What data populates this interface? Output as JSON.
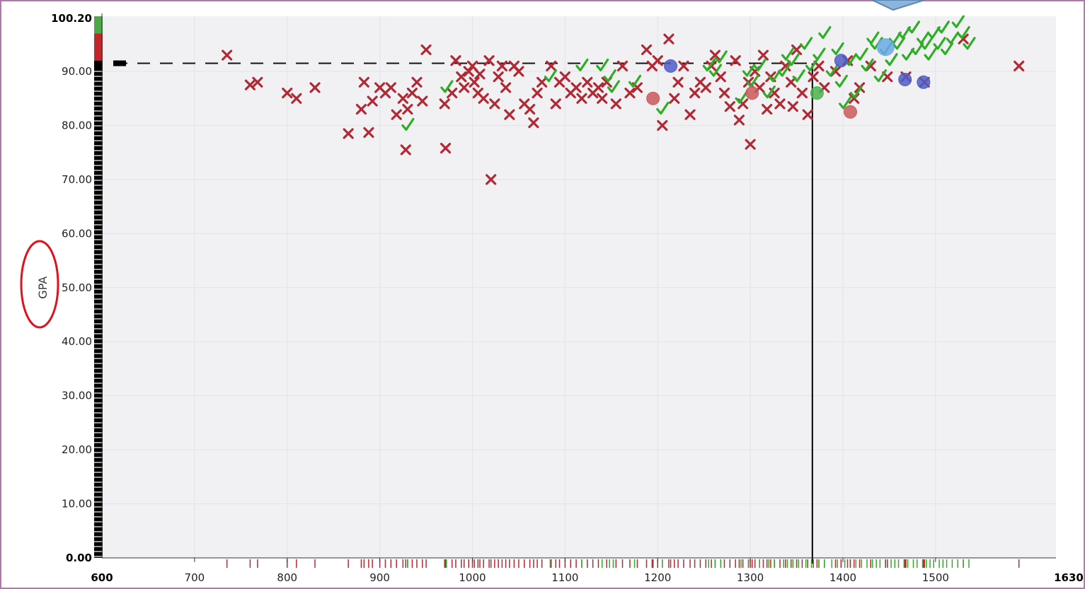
{
  "chart_data": {
    "type": "scatter",
    "title": "",
    "xlabel": "",
    "ylabel": "GPA",
    "xlim": [
      600,
      1630
    ],
    "ylim": [
      0,
      100.2
    ],
    "x_ticks": [
      "700",
      "800",
      "900",
      "1000",
      "1100",
      "1200",
      "1300",
      "1400",
      "1500"
    ],
    "x_edge_labels": [
      "600",
      "1630"
    ],
    "y_ticks": [
      "0.00",
      "10.00",
      "20.00",
      "30.00",
      "40.00",
      "50.00",
      "60.00",
      "70.00",
      "80.00",
      "90.00"
    ],
    "y_max_label": "100.20",
    "grid": true,
    "reference_lines": {
      "horizontal_y": 91.5,
      "vertical_x": 1367
    },
    "marker_colors": {
      "rejected": "#b02a35",
      "accepted": "#2eae25",
      "accepted_circle": "#4bb34a",
      "rejected_circle": "#c95a5a",
      "selected_circle": "#4f5dc5",
      "highlight_circle": "#6aa9e8"
    },
    "series": [
      {
        "marker": "x",
        "points": [
          [
            735,
            93
          ],
          [
            760,
            87.5
          ],
          [
            768,
            88
          ],
          [
            800,
            86
          ],
          [
            810,
            85
          ],
          [
            830,
            87
          ],
          [
            866,
            78.5
          ],
          [
            880,
            83
          ],
          [
            883,
            88
          ],
          [
            888,
            78.7
          ],
          [
            892,
            84.5
          ],
          [
            900,
            87
          ],
          [
            906,
            86
          ],
          [
            912,
            87
          ],
          [
            918,
            82
          ],
          [
            925,
            85
          ],
          [
            928,
            75.5
          ],
          [
            930,
            83
          ],
          [
            935,
            86
          ],
          [
            940,
            88
          ],
          [
            946,
            84.5
          ],
          [
            950,
            94
          ],
          [
            970,
            84
          ],
          [
            971,
            75.8
          ],
          [
            978,
            86
          ],
          [
            982,
            92
          ],
          [
            988,
            89
          ],
          [
            991,
            87
          ],
          [
            996,
            90
          ],
          [
            1000,
            91
          ],
          [
            1002,
            88
          ],
          [
            1006,
            86
          ],
          [
            1008,
            89.5
          ],
          [
            1012,
            85
          ],
          [
            1018,
            92
          ],
          [
            1020,
            70
          ],
          [
            1024,
            84
          ],
          [
            1028,
            89
          ],
          [
            1032,
            91
          ],
          [
            1036,
            87
          ],
          [
            1040,
            82
          ],
          [
            1045,
            91
          ],
          [
            1050,
            90
          ],
          [
            1056,
            84
          ],
          [
            1062,
            83
          ],
          [
            1066,
            80.5
          ],
          [
            1070,
            86
          ],
          [
            1075,
            88
          ],
          [
            1085,
            91
          ],
          [
            1090,
            84
          ],
          [
            1094,
            88
          ],
          [
            1100,
            89
          ],
          [
            1106,
            86
          ],
          [
            1112,
            87
          ],
          [
            1118,
            85
          ],
          [
            1124,
            88
          ],
          [
            1130,
            86
          ],
          [
            1136,
            87
          ],
          [
            1140,
            85
          ],
          [
            1145,
            88
          ],
          [
            1155,
            84
          ],
          [
            1162,
            91
          ],
          [
            1170,
            86
          ],
          [
            1178,
            87
          ],
          [
            1188,
            94
          ],
          [
            1194,
            91
          ],
          [
            1200,
            92
          ],
          [
            1205,
            80
          ],
          [
            1212,
            96
          ],
          [
            1218,
            85
          ],
          [
            1222,
            88
          ],
          [
            1228,
            91
          ],
          [
            1235,
            82
          ],
          [
            1240,
            86
          ],
          [
            1246,
            88
          ],
          [
            1252,
            87
          ],
          [
            1258,
            91
          ],
          [
            1262,
            93
          ],
          [
            1268,
            89
          ],
          [
            1272,
            86
          ],
          [
            1278,
            83.5
          ],
          [
            1284,
            92
          ],
          [
            1288,
            81
          ],
          [
            1292,
            84
          ],
          [
            1298,
            88
          ],
          [
            1300,
            76.5
          ],
          [
            1305,
            90
          ],
          [
            1310,
            87
          ],
          [
            1314,
            93
          ],
          [
            1318,
            83
          ],
          [
            1322,
            89
          ],
          [
            1326,
            86
          ],
          [
            1332,
            84
          ],
          [
            1338,
            91
          ],
          [
            1344,
            88
          ],
          [
            1346,
            83.5
          ],
          [
            1350,
            94
          ],
          [
            1356,
            86
          ],
          [
            1362,
            82
          ],
          [
            1368,
            89
          ],
          [
            1374,
            91
          ],
          [
            1380,
            87
          ],
          [
            1392,
            90
          ],
          [
            1405,
            92
          ],
          [
            1412,
            85
          ],
          [
            1418,
            87
          ],
          [
            1430,
            91
          ],
          [
            1448,
            89
          ],
          [
            1468,
            89
          ],
          [
            1488,
            88
          ],
          [
            1530,
            96
          ],
          [
            1590,
            91
          ]
        ]
      },
      {
        "marker": "check",
        "points": [
          [
            930,
            80
          ],
          [
            972,
            87
          ],
          [
            1084,
            89
          ],
          [
            1118,
            91
          ],
          [
            1140,
            91
          ],
          [
            1148,
            89
          ],
          [
            1152,
            87
          ],
          [
            1175,
            88
          ],
          [
            1205,
            83
          ],
          [
            1255,
            91
          ],
          [
            1262,
            90
          ],
          [
            1268,
            92.5
          ],
          [
            1290,
            85
          ],
          [
            1298,
            90
          ],
          [
            1302,
            88
          ],
          [
            1310,
            91
          ],
          [
            1320,
            86
          ],
          [
            1326,
            89
          ],
          [
            1336,
            90
          ],
          [
            1340,
            93
          ],
          [
            1346,
            92
          ],
          [
            1352,
            89
          ],
          [
            1360,
            95
          ],
          [
            1366,
            91
          ],
          [
            1374,
            93
          ],
          [
            1380,
            97
          ],
          [
            1388,
            90
          ],
          [
            1394,
            94
          ],
          [
            1398,
            88
          ],
          [
            1402,
            84
          ],
          [
            1408,
            92
          ],
          [
            1414,
            86
          ],
          [
            1420,
            93
          ],
          [
            1426,
            91
          ],
          [
            1432,
            96
          ],
          [
            1436,
            95
          ],
          [
            1440,
            89
          ],
          [
            1446,
            94
          ],
          [
            1452,
            92
          ],
          [
            1456,
            96
          ],
          [
            1460,
            95
          ],
          [
            1466,
            97
          ],
          [
            1470,
            93
          ],
          [
            1476,
            98
          ],
          [
            1480,
            94
          ],
          [
            1486,
            96
          ],
          [
            1490,
            95
          ],
          [
            1494,
            93
          ],
          [
            1498,
            97
          ],
          [
            1504,
            95
          ],
          [
            1508,
            98
          ],
          [
            1512,
            94
          ],
          [
            1518,
            96
          ],
          [
            1524,
            99
          ],
          [
            1530,
            97
          ],
          [
            1536,
            95
          ]
        ]
      },
      {
        "marker": "circle",
        "points": [
          [
            1195,
            85,
            "rejected_circle"
          ],
          [
            1214,
            91,
            "selected_circle"
          ],
          [
            1302,
            86,
            "rejected_circle"
          ],
          [
            1372,
            86,
            "accepted_circle"
          ],
          [
            1398,
            92,
            "selected_circle"
          ],
          [
            1408,
            82.5,
            "rejected_circle"
          ],
          [
            1446,
            94.5,
            "highlight_circle"
          ],
          [
            1467,
            88.5,
            "selected_circle"
          ],
          [
            1487,
            88,
            "selected_circle"
          ]
        ]
      }
    ],
    "left_strip": {
      "color_bands": [
        {
          "from": 97,
          "to": 100.2,
          "color": "#4da84a"
        },
        {
          "from": 92,
          "to": 97,
          "color": "#c0272d"
        },
        {
          "from": 0,
          "to": 92,
          "color": "#000000"
        }
      ]
    }
  }
}
